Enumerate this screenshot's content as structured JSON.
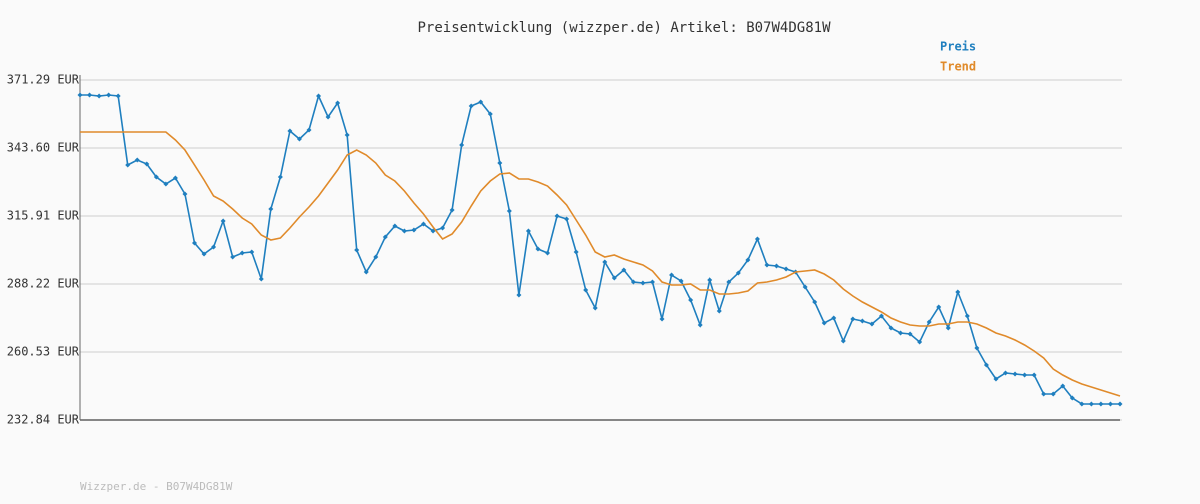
{
  "chart_data": {
    "type": "line",
    "title": "Preisentwicklung (wizzper.de) Artikel: B07W4DG81W",
    "footer": "Wizzper.de - B07W4DG81W",
    "ylim": [
      232.84,
      371.29
    ],
    "yticks": [
      {
        "value": 232.84,
        "label": "232.84 EUR"
      },
      {
        "value": 260.53,
        "label": "260.53 EUR"
      },
      {
        "value": 288.22,
        "label": "288.22 EUR"
      },
      {
        "value": 315.91,
        "label": "315.91 EUR"
      },
      {
        "value": 343.6,
        "label": "343.60 EUR"
      },
      {
        "value": 371.29,
        "label": "371.29 EUR"
      }
    ],
    "grid": true,
    "legend": "top-right",
    "series": [
      {
        "name": "Preis",
        "color": "#1f7fbf",
        "markers": true,
        "values": [
          365.18,
          365.18,
          364.77,
          365.18,
          364.77,
          336.68,
          338.71,
          337.08,
          331.79,
          328.94,
          331.38,
          324.87,
          304.91,
          300.44,
          303.29,
          313.87,
          299.21,
          300.84,
          301.25,
          290.26,
          318.76,
          331.79,
          350.52,
          347.26,
          350.93,
          364.77,
          356.22,
          361.92,
          348.89,
          302.06,
          293.11,
          299.21,
          307.36,
          311.84,
          309.8,
          310.21,
          312.65,
          309.8,
          311.02,
          318.35,
          344.82,
          360.7,
          362.33,
          357.44,
          337.49,
          317.94,
          283.74,
          309.8,
          302.47,
          300.84,
          315.91,
          314.69,
          301.25,
          285.78,
          278.45,
          297.18,
          290.66,
          293.92,
          289.03,
          288.63,
          289.03,
          273.97,
          291.88,
          289.44,
          281.7,
          271.52,
          289.85,
          277.22,
          289.03,
          292.7,
          297.99,
          306.54,
          295.96,
          295.55,
          294.33,
          293.11,
          287.0,
          280.89,
          272.34,
          274.37,
          265.01,
          273.97,
          273.15,
          271.93,
          275.19,
          270.3,
          268.27,
          267.86,
          264.6,
          272.75,
          278.85,
          270.3,
          284.96,
          275.19,
          262.16,
          255.24,
          249.54,
          251.98,
          251.57,
          251.16,
          251.16,
          243.43,
          243.43,
          246.68,
          241.8,
          239.36,
          239.36,
          239.36,
          239.36,
          239.36
        ]
      },
      {
        "name": "Trend",
        "color": "#e08a2a",
        "markers": false,
        "values": [
          350.11,
          350.11,
          350.11,
          350.11,
          350.11,
          350.11,
          350.11,
          350.11,
          350.11,
          350.11,
          346.86,
          342.78,
          336.68,
          330.57,
          324.05,
          322.02,
          318.76,
          315.09,
          312.65,
          308.17,
          306.14,
          306.95,
          311.02,
          315.5,
          319.57,
          324.05,
          329.35,
          334.64,
          340.75,
          342.78,
          340.75,
          337.49,
          332.6,
          330.16,
          326.09,
          321.2,
          316.72,
          311.43,
          306.54,
          308.58,
          313.47,
          319.98,
          326.09,
          330.16,
          333.01,
          333.42,
          330.98,
          330.98,
          329.75,
          328.12,
          324.46,
          320.39,
          314.28,
          308.17,
          301.25,
          299.21,
          300.03,
          298.4,
          297.18,
          295.96,
          293.51,
          289.03,
          287.81,
          287.81,
          288.22,
          285.78,
          285.78,
          284.15,
          284.15,
          284.55,
          285.37,
          288.63,
          289.03,
          289.85,
          291.07,
          293.11,
          293.51,
          293.92,
          292.29,
          289.85,
          286.18,
          283.33,
          280.89,
          278.85,
          276.82,
          274.37,
          272.75,
          271.52,
          271.12,
          271.12,
          271.93,
          271.93,
          272.75,
          272.75,
          271.93,
          270.3,
          268.27,
          267.04,
          265.42,
          263.38,
          260.94,
          258.09,
          253.61,
          251.16,
          249.13,
          247.5,
          246.28,
          245.06,
          243.83,
          242.61
        ]
      }
    ]
  }
}
